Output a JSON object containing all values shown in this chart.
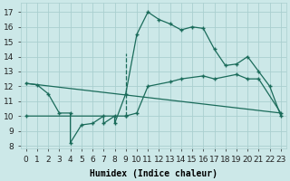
{
  "xlabel": "Humidex (Indice chaleur)",
  "xlim": [
    -0.5,
    23.5
  ],
  "ylim": [
    7.8,
    17.6
  ],
  "yticks": [
    8,
    9,
    10,
    11,
    12,
    13,
    14,
    15,
    16,
    17
  ],
  "xticks": [
    0,
    1,
    2,
    3,
    4,
    5,
    6,
    7,
    8,
    9,
    10,
    11,
    12,
    13,
    14,
    15,
    16,
    17,
    18,
    19,
    20,
    21,
    22,
    23
  ],
  "bg_color": "#cce8e8",
  "grid_color": "#aacfcf",
  "line_color": "#1a6b5a",
  "curve1_x": [
    0,
    1,
    2,
    3,
    4,
    4,
    5,
    6,
    7,
    7,
    8,
    8,
    9,
    10,
    11,
    12,
    13,
    14,
    15,
    16,
    17,
    18,
    19,
    20,
    21,
    22,
    23
  ],
  "curve1_y": [
    12.2,
    12.1,
    11.5,
    10.2,
    10.2,
    8.2,
    9.4,
    9.5,
    10.0,
    9.5,
    10.0,
    9.5,
    11.5,
    15.5,
    17.0,
    16.5,
    16.2,
    15.8,
    16.0,
    15.9,
    14.5,
    13.4,
    13.5,
    14.0,
    13.0,
    12.0,
    10.0
  ],
  "curve2_x": [
    0,
    23
  ],
  "curve2_y": [
    12.2,
    10.2
  ],
  "curve3_x": [
    0,
    9,
    9,
    10,
    11,
    13,
    14,
    16,
    17,
    19,
    20,
    21,
    23
  ],
  "curve3_y": [
    10.0,
    10.0,
    10.0,
    10.2,
    12.0,
    12.3,
    12.5,
    12.7,
    12.5,
    12.8,
    12.5,
    12.5,
    10.2
  ],
  "curve4_x": [
    9,
    9
  ],
  "curve4_y": [
    10.0,
    14.2
  ],
  "marker": "+",
  "linewidth": 0.9,
  "fontsize_label": 7,
  "fontsize_tick": 6.5
}
